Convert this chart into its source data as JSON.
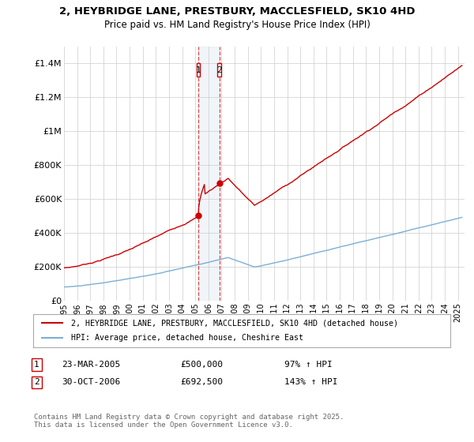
{
  "title_line1": "2, HEYBRIDGE LANE, PRESTBURY, MACCLESFIELD, SK10 4HD",
  "title_line2": "Price paid vs. HM Land Registry's House Price Index (HPI)",
  "ylabel_ticks": [
    "£0",
    "£200K",
    "£400K",
    "£600K",
    "£800K",
    "£1M",
    "£1.2M",
    "£1.4M"
  ],
  "ylabel_values": [
    0,
    200000,
    400000,
    600000,
    800000,
    1000000,
    1200000,
    1400000
  ],
  "ylim": [
    0,
    1500000
  ],
  "xlim_start": 1995.0,
  "xlim_end": 2025.5,
  "sale1_t": 2005.22,
  "sale1_p": 500000,
  "sale2_t": 2006.83,
  "sale2_p": 692500,
  "legend_line1": "2, HEYBRIDGE LANE, PRESTBURY, MACCLESFIELD, SK10 4HD (detached house)",
  "legend_line2": "HPI: Average price, detached house, Cheshire East",
  "row1_label": "1",
  "row1_date": "23-MAR-2005",
  "row1_price": "£500,000",
  "row1_hpi": "97% ↑ HPI",
  "row2_label": "2",
  "row2_date": "30-OCT-2006",
  "row2_price": "£692,500",
  "row2_hpi": "143% ↑ HPI",
  "footer": "Contains HM Land Registry data © Crown copyright and database right 2025.\nThis data is licensed under the Open Government Licence v3.0.",
  "property_color": "#cc0000",
  "hpi_color": "#7bafd4",
  "span_color": "#c8d8e8",
  "background_color": "#ffffff",
  "grid_color": "#cccccc"
}
